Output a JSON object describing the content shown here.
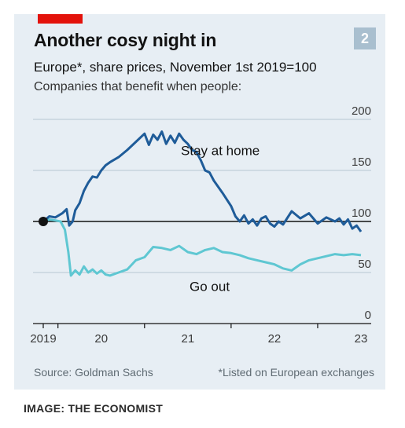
{
  "title": "Another cosy night in",
  "subtitle": "Europe*, share prices, November 1st 2019=100",
  "note": "Companies that benefit when people:",
  "badge": "2",
  "source": "Source: Goldman Sachs",
  "footnote": "*Listed on European exchanges",
  "credit": "IMAGE: THE ECONOMIST",
  "colors": {
    "stay_at_home": "#1f5c99",
    "go_out": "#5fc7d2",
    "baseline": "#121212",
    "brand_red": "#e3120b",
    "background": "#e7eef4"
  },
  "chart_data": {
    "type": "line",
    "title": "Another cosy night in",
    "subtitle": "Europe*, share prices, November 1st 2019=100",
    "ylabel": "",
    "xlabel": "",
    "ylim": [
      0,
      200
    ],
    "xlim": [
      2019.83,
      2023.6
    ],
    "yticks": [
      0,
      50,
      100,
      150,
      200
    ],
    "xticks": [
      {
        "label": "2019",
        "x": 2019.83
      },
      {
        "label": "20",
        "x": 2020.5
      },
      {
        "label": "21",
        "x": 2021.5
      },
      {
        "label": "22",
        "x": 2022.5
      },
      {
        "label": "23",
        "x": 2023.5
      }
    ],
    "baseline": 100,
    "start_marker": {
      "x": 2019.83,
      "y": 100
    },
    "grid": "horizontal",
    "series": [
      {
        "name": "Stay at home",
        "x": [
          2019.83,
          2019.9,
          2019.97,
          2020.05,
          2020.1,
          2020.13,
          2020.17,
          2020.2,
          2020.25,
          2020.3,
          2020.35,
          2020.4,
          2020.45,
          2020.5,
          2020.55,
          2020.6,
          2020.7,
          2020.8,
          2020.9,
          2021.0,
          2021.05,
          2021.1,
          2021.15,
          2021.2,
          2021.25,
          2021.3,
          2021.35,
          2021.4,
          2021.45,
          2021.5,
          2021.55,
          2021.6,
          2021.65,
          2021.7,
          2021.75,
          2021.8,
          2021.9,
          2022.0,
          2022.05,
          2022.1,
          2022.15,
          2022.2,
          2022.25,
          2022.3,
          2022.35,
          2022.4,
          2022.45,
          2022.5,
          2022.55,
          2022.6,
          2022.7,
          2022.8,
          2022.9,
          2023.0,
          2023.1,
          2023.2,
          2023.25,
          2023.3,
          2023.35,
          2023.4,
          2023.45,
          2023.5
        ],
        "values": [
          100,
          105,
          104,
          108,
          112,
          96,
          100,
          111,
          118,
          130,
          138,
          144,
          143,
          150,
          155,
          158,
          163,
          170,
          178,
          186,
          175,
          185,
          180,
          188,
          176,
          184,
          177,
          186,
          180,
          176,
          170,
          168,
          160,
          150,
          148,
          140,
          128,
          115,
          105,
          100,
          106,
          98,
          102,
          96,
          103,
          105,
          98,
          95,
          100,
          97,
          110,
          103,
          108,
          98,
          104,
          100,
          103,
          97,
          102,
          93,
          96,
          90
        ]
      },
      {
        "name": "Go out",
        "x": [
          2019.83,
          2019.9,
          2019.97,
          2020.03,
          2020.08,
          2020.12,
          2020.15,
          2020.2,
          2020.25,
          2020.3,
          2020.35,
          2020.4,
          2020.45,
          2020.5,
          2020.55,
          2020.6,
          2020.7,
          2020.8,
          2020.9,
          2021.0,
          2021.1,
          2021.2,
          2021.3,
          2021.4,
          2021.5,
          2021.6,
          2021.7,
          2021.8,
          2021.9,
          2022.0,
          2022.1,
          2022.2,
          2022.3,
          2022.4,
          2022.5,
          2022.6,
          2022.7,
          2022.8,
          2022.9,
          2023.0,
          2023.1,
          2023.2,
          2023.3,
          2023.4,
          2023.5
        ],
        "values": [
          100,
          102,
          101,
          100,
          92,
          70,
          47,
          52,
          48,
          56,
          50,
          53,
          49,
          52,
          48,
          47,
          50,
          53,
          62,
          65,
          75,
          74,
          72,
          76,
          70,
          68,
          72,
          74,
          70,
          69,
          67,
          64,
          62,
          60,
          58,
          54,
          52,
          58,
          62,
          64,
          66,
          68,
          67,
          68,
          67
        ]
      }
    ],
    "labels": [
      {
        "text": "Stay at home",
        "x": 2021.42,
        "y": 165
      },
      {
        "text": "Go out",
        "x": 2021.52,
        "y": 32
      }
    ]
  }
}
